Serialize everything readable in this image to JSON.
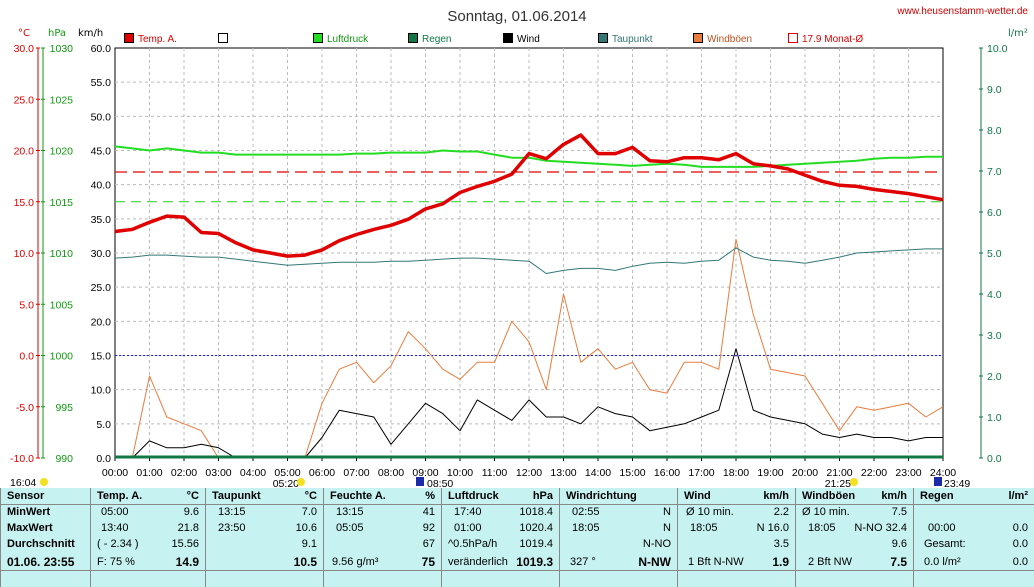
{
  "title": "Sonntag, 01.06.2014",
  "site": "www.heusenstamm-wetter.de",
  "units": {
    "temp": "°C",
    "press": "hPa",
    "speed": "km/h",
    "rain": "l/m²"
  },
  "legend": [
    {
      "label": "Temp. A.",
      "color": "#e00000",
      "style": "filled"
    },
    {
      "label": "",
      "color": "#000000",
      "style": "hollow"
    },
    {
      "label": "Luftdruck",
      "color": "#22dd22",
      "style": "filled"
    },
    {
      "label": "Regen",
      "color": "#117744",
      "style": "filled"
    },
    {
      "label": "Wind",
      "color": "#000000",
      "style": "filled"
    },
    {
      "label": "Taupunkt",
      "color": "#337777",
      "style": "filled"
    },
    {
      "label": "Windböen",
      "color": "#e87d3e",
      "style": "filled"
    },
    {
      "label": "17.9 Monat-Ø",
      "color": "#e00000",
      "style": "hollow"
    }
  ],
  "axes": {
    "temp": [
      "30.0",
      "25.0",
      "20.0",
      "15.0",
      "10.0",
      "5.0",
      "0.0",
      "-5.0",
      "-10.0"
    ],
    "press": [
      "1030",
      "1025",
      "1020",
      "1015",
      "1010",
      "1005",
      "1000",
      "995",
      "990"
    ],
    "speed": [
      "60.0",
      "55.0",
      "50.0",
      "45.0",
      "40.0",
      "35.0",
      "30.0",
      "25.0",
      "20.0",
      "15.0",
      "10.0",
      "5.0",
      "0.0"
    ],
    "rain": [
      "10.0",
      "9.0",
      "8.0",
      "7.0",
      "6.0",
      "5.0",
      "4.0",
      "3.0",
      "2.0",
      "1.0",
      "0.0"
    ],
    "hours": [
      "00:00",
      "01:00",
      "02:00",
      "03:00",
      "04:00",
      "05:00",
      "06:00",
      "07:00",
      "08:00",
      "09:00",
      "10:00",
      "11:00",
      "12:00",
      "13:00",
      "14:00",
      "15:00",
      "16:00",
      "17:00",
      "18:00",
      "19:00",
      "20:00",
      "21:00",
      "22:00",
      "23:00",
      "24:00"
    ]
  },
  "markers": {
    "left": "16:04",
    "sunrise": "05:20",
    "moon1": "08:50",
    "sunset": "21:25",
    "moon2": "23:49"
  },
  "chart_data": {
    "type": "line",
    "x_hours": [
      0,
      0.5,
      1,
      1.5,
      2,
      2.5,
      3,
      3.5,
      4,
      4.5,
      5,
      5.5,
      6,
      6.5,
      7,
      7.5,
      8,
      8.5,
      9,
      9.5,
      10,
      10.5,
      11,
      11.5,
      12,
      12.5,
      13,
      13.5,
      14,
      14.5,
      15,
      15.5,
      16,
      16.5,
      17,
      17.5,
      18,
      18.5,
      19,
      19.5,
      20,
      20.5,
      21,
      21.5,
      22,
      22.5,
      23,
      23.5,
      24
    ],
    "series": [
      {
        "name": "Temp. A.",
        "unit": "°C",
        "color": "#e00000",
        "values": [
          12.1,
          12.3,
          13.0,
          13.6,
          13.5,
          12.0,
          11.9,
          11.0,
          10.3,
          10.0,
          9.7,
          9.8,
          10.3,
          11.2,
          11.8,
          12.3,
          12.7,
          13.3,
          14.3,
          14.8,
          15.9,
          16.5,
          17.0,
          17.7,
          19.7,
          19.2,
          20.6,
          21.5,
          19.7,
          19.7,
          20.3,
          19.0,
          18.9,
          19.3,
          19.3,
          19.1,
          19.7,
          18.7,
          18.5,
          18.2,
          17.6,
          17.0,
          16.6,
          16.5,
          16.2,
          16.0,
          15.8,
          15.5,
          15.2
        ]
      },
      {
        "name": "Luftdruck",
        "unit": "hPa",
        "color": "#22dd22",
        "values": [
          1020.4,
          1020.2,
          1020.0,
          1020.2,
          1020.0,
          1019.8,
          1019.8,
          1019.6,
          1019.6,
          1019.6,
          1019.6,
          1019.6,
          1019.6,
          1019.6,
          1019.7,
          1019.7,
          1019.8,
          1019.8,
          1019.8,
          1020.0,
          1019.9,
          1019.9,
          1019.6,
          1019.3,
          1019.3,
          1019.0,
          1018.9,
          1018.8,
          1018.7,
          1018.6,
          1018.5,
          1018.6,
          1018.7,
          1018.6,
          1018.4,
          1018.4,
          1018.4,
          1018.4,
          1018.5,
          1018.6,
          1018.7,
          1018.8,
          1018.9,
          1019.0,
          1019.2,
          1019.3,
          1019.3,
          1019.4,
          1019.4
        ]
      },
      {
        "name": "Taupunkt",
        "unit": "°C",
        "color": "#337777",
        "values": [
          9.5,
          9.6,
          9.8,
          9.8,
          9.7,
          9.6,
          9.6,
          9.4,
          9.2,
          9.0,
          8.8,
          8.9,
          9.0,
          9.1,
          9.1,
          9.1,
          9.2,
          9.2,
          9.3,
          9.4,
          9.5,
          9.5,
          9.4,
          9.3,
          9.2,
          8.0,
          8.3,
          8.5,
          8.5,
          8.3,
          8.7,
          9.0,
          9.1,
          9.0,
          9.2,
          9.3,
          10.5,
          9.6,
          9.3,
          9.2,
          9.0,
          9.3,
          9.6,
          10.0,
          10.1,
          10.2,
          10.3,
          10.4,
          10.4
        ]
      },
      {
        "name": "Wind",
        "unit": "km/h",
        "color": "#000000",
        "values": [
          0,
          0,
          2.5,
          1.5,
          1.5,
          2.0,
          1.5,
          0,
          0,
          0,
          0,
          0,
          3.0,
          7.0,
          6.5,
          6.0,
          2.0,
          5.0,
          8.0,
          6.5,
          4.0,
          8.5,
          7.0,
          5.5,
          8.5,
          6.0,
          6.0,
          5.0,
          7.5,
          6.5,
          6.0,
          4.0,
          4.5,
          5.0,
          6.0,
          7.0,
          16.0,
          7.0,
          6.0,
          5.5,
          5.0,
          3.5,
          3.0,
          3.5,
          3.0,
          3.0,
          2.5,
          3.0,
          3.0
        ]
      },
      {
        "name": "Windböen",
        "unit": "km/h",
        "color": "#e87d3e",
        "values": [
          0,
          0,
          12.0,
          6.0,
          5.0,
          4.0,
          0,
          0,
          0,
          0,
          0,
          0,
          8.0,
          13.0,
          14.0,
          11.0,
          13.5,
          18.5,
          16.0,
          13.0,
          11.5,
          14.0,
          14.0,
          20.0,
          17.0,
          10.0,
          24.0,
          14.0,
          16.0,
          13.0,
          14.0,
          10.0,
          9.5,
          14.0,
          14.0,
          13.0,
          32.0,
          21.0,
          13.0,
          12.5,
          12.0,
          8.0,
          4.0,
          7.5,
          7.0,
          7.5,
          8.0,
          6.0,
          7.5
        ]
      }
    ],
    "month_avg_temp": 17.9,
    "ref_press": 1000,
    "ylim_speed": [
      0,
      60
    ]
  },
  "table": {
    "row_labels": [
      "Sensor",
      "MinWert",
      "MaxWert",
      "Durchschnitt",
      "01.06. 23:55"
    ],
    "temp": {
      "h": "Temp. A.",
      "u": "°C",
      "min_t": "05:00",
      "min": "9.6",
      "max_t": "13:40",
      "max": "21.8",
      "avg_t": "( - 2.34 )",
      "avg": "15.56",
      "cur_t": "F: 75 %",
      "cur": "14.9"
    },
    "dew": {
      "h": "Taupunkt",
      "u": "°C",
      "min_t": "13:15",
      "min": "7.0",
      "max_t": "23:50",
      "max": "10.6",
      "avg": "9.1",
      "cur": "10.5"
    },
    "hum": {
      "h": "Feuchte A.",
      "u": "%",
      "min_t": "13:15",
      "min": "41",
      "max_t": "05:05",
      "max": "92",
      "avg": "67",
      "cur_t": "9.56 g/m³",
      "cur": "75"
    },
    "press": {
      "h": "Luftdruck",
      "u": "hPa",
      "min_t": "17:40",
      "min": "1018.4",
      "max_t": "01:00",
      "max": "1020.4",
      "avg_t": "^0.5hPa/h",
      "avg": "1019.4",
      "cur_t": "veränderlich",
      "cur": "1019.3"
    },
    "dir": {
      "h": "Windrichtung",
      "min_t": "02:55",
      "min": "N",
      "max_t": "18:05",
      "max": "N",
      "avg": "N-NO",
      "cur_t": "327 °",
      "cur": "N-NW"
    },
    "wind": {
      "h": "Wind",
      "u": "km/h",
      "min_t": "Ø 10 min.",
      "min": "2.2",
      "max_t": "18:05",
      "max": "N 16.0",
      "avg": "3.5",
      "cur_t": "1 Bft N-NW",
      "cur": "1.9"
    },
    "gust": {
      "h": "Windböen",
      "u": "km/h",
      "min_t": "Ø 10 min.",
      "min": "7.5",
      "max_t": "18:05",
      "max": "N-NO 32.4",
      "avg": "9.6",
      "cur_t": "2 Bft NW",
      "cur": "7.5"
    },
    "rain": {
      "h": "Regen",
      "u": "l/m²",
      "min_t": "00:00",
      "min": "0.0",
      "max_t": "Gesamt:",
      "max": "0.0",
      "cur_t": "0.0 l/m²",
      "cur": "0.0"
    }
  }
}
